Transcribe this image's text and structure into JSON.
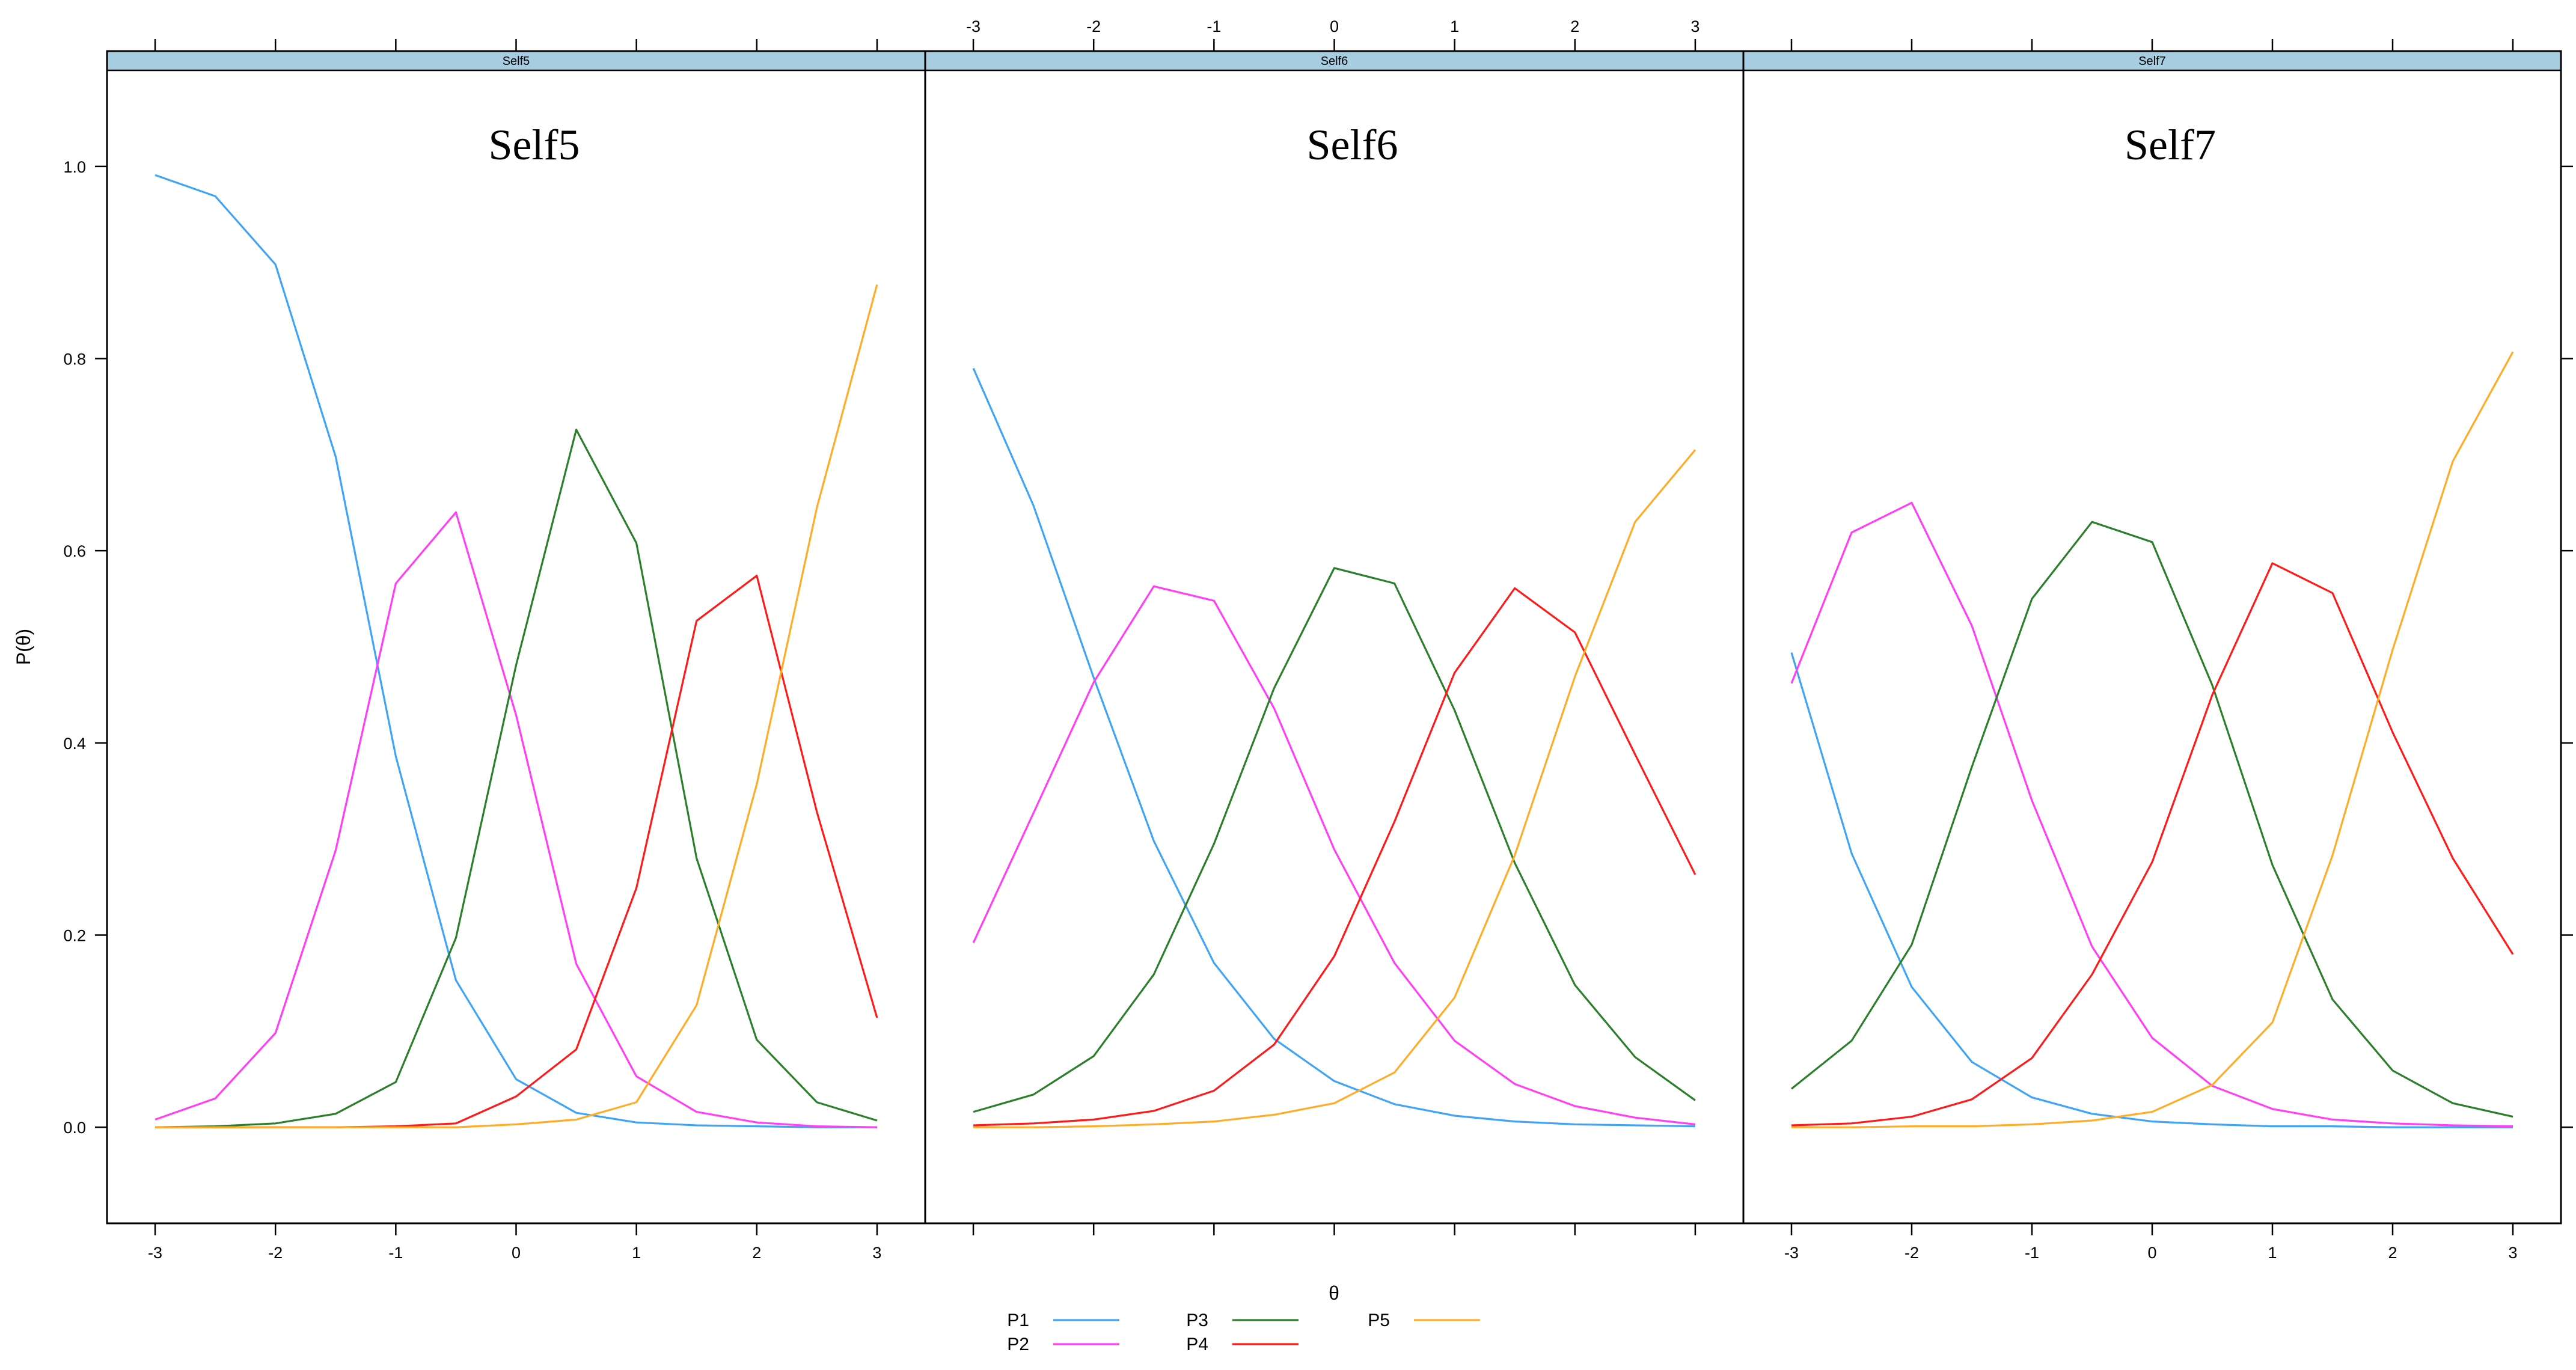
{
  "colors": {
    "P1": "#3fa4f6",
    "P2": "#ff3ef6",
    "P3": "#2b7f2b",
    "P4": "#ff1a1a",
    "P5": "#ffad29",
    "strip": "#a6cde0"
  },
  "chart_data": {
    "type": "line",
    "xlabel": "θ",
    "ylabel": "P(θ)",
    "xlim": [
      -3.4,
      3.4
    ],
    "ylim": [
      -0.1,
      1.1
    ],
    "xticks": [
      "-3",
      "-2",
      "-1",
      "0",
      "1",
      "2",
      "3"
    ],
    "yticks": [
      "0.0",
      "0.2",
      "0.4",
      "0.6",
      "0.8",
      "1.0"
    ],
    "x": [
      -3,
      -2.5,
      -2,
      -1.5,
      -1,
      -0.5,
      0,
      0.5,
      1,
      1.5,
      2,
      2.5,
      3
    ],
    "legend": [
      "P1",
      "P2",
      "P3",
      "P4",
      "P5"
    ],
    "legend_position": "bottom",
    "panels": [
      {
        "strip": "Self5",
        "title": "Self5",
        "series": [
          {
            "name": "P1",
            "values": [
              0.991,
              0.969,
              0.898,
              0.698,
              0.386,
              0.153,
              0.05,
              0.015,
              0.005,
              0.002,
              0.001,
              0.0,
              0.0
            ]
          },
          {
            "name": "P2",
            "values": [
              0.008,
              0.03,
              0.098,
              0.288,
              0.566,
              0.64,
              0.429,
              0.17,
              0.053,
              0.016,
              0.005,
              0.001,
              0.0
            ]
          },
          {
            "name": "P3",
            "values": [
              0.0,
              0.001,
              0.004,
              0.014,
              0.047,
              0.197,
              0.481,
              0.726,
              0.608,
              0.28,
              0.091,
              0.026,
              0.007
            ]
          },
          {
            "name": "P4",
            "values": [
              0.0,
              0.0,
              0.0,
              0.0,
              0.001,
              0.004,
              0.032,
              0.081,
              0.249,
              0.527,
              0.574,
              0.328,
              0.114
            ]
          },
          {
            "name": "P5",
            "values": [
              0.0,
              0.0,
              0.0,
              0.0,
              0.0,
              0.0,
              0.003,
              0.008,
              0.026,
              0.127,
              0.357,
              0.645,
              0.877
            ]
          }
        ]
      },
      {
        "strip": "Self6",
        "title": "Self6",
        "series": [
          {
            "name": "P1",
            "values": [
              0.79,
              0.647,
              0.468,
              0.298,
              0.171,
              0.092,
              0.048,
              0.024,
              0.012,
              0.006,
              0.003,
              0.002,
              0.001
            ]
          },
          {
            "name": "P2",
            "values": [
              0.192,
              0.327,
              0.463,
              0.563,
              0.548,
              0.436,
              0.289,
              0.171,
              0.09,
              0.045,
              0.022,
              0.01,
              0.003
            ]
          },
          {
            "name": "P3",
            "values": [
              0.016,
              0.034,
              0.074,
              0.159,
              0.295,
              0.457,
              0.582,
              0.566,
              0.434,
              0.275,
              0.148,
              0.073,
              0.028
            ]
          },
          {
            "name": "P4",
            "values": [
              0.002,
              0.004,
              0.008,
              0.017,
              0.038,
              0.086,
              0.178,
              0.318,
              0.473,
              0.561,
              0.515,
              0.388,
              0.263
            ]
          },
          {
            "name": "P5",
            "values": [
              0.0,
              0.0,
              0.001,
              0.003,
              0.006,
              0.013,
              0.025,
              0.057,
              0.135,
              0.283,
              0.469,
              0.63,
              0.705
            ]
          }
        ]
      },
      {
        "strip": "Self7",
        "title": "Self7",
        "series": [
          {
            "name": "P1",
            "values": [
              0.494,
              0.285,
              0.146,
              0.068,
              0.031,
              0.014,
              0.006,
              0.003,
              0.001,
              0.001,
              0.0,
              0.0,
              0.0
            ]
          },
          {
            "name": "P2",
            "values": [
              0.462,
              0.619,
              0.65,
              0.522,
              0.34,
              0.188,
              0.093,
              0.043,
              0.019,
              0.008,
              0.004,
              0.002,
              0.001
            ]
          },
          {
            "name": "P3",
            "values": [
              0.04,
              0.09,
              0.19,
              0.375,
              0.55,
              0.63,
              0.609,
              0.46,
              0.273,
              0.133,
              0.059,
              0.025,
              0.011
            ]
          },
          {
            "name": "P4",
            "values": [
              0.002,
              0.004,
              0.011,
              0.029,
              0.072,
              0.159,
              0.276,
              0.45,
              0.587,
              0.556,
              0.411,
              0.28,
              0.18
            ]
          },
          {
            "name": "P5",
            "values": [
              0.0,
              0.0,
              0.001,
              0.001,
              0.003,
              0.007,
              0.016,
              0.044,
              0.109,
              0.283,
              0.497,
              0.693,
              0.807
            ]
          }
        ]
      }
    ]
  }
}
